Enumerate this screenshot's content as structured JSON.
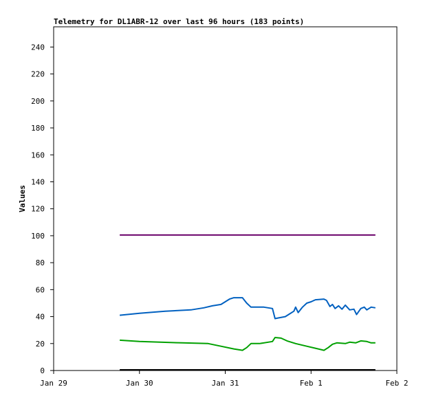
{
  "chart_data": {
    "type": "line",
    "title": "Telemetry for DL1ABR-12 over last 96 hours (183 points)",
    "xlabel": "",
    "ylabel": "Values",
    "ylim": [
      0,
      255
    ],
    "yticks": [
      0,
      20,
      40,
      60,
      80,
      100,
      120,
      140,
      160,
      180,
      200,
      220,
      240
    ],
    "xlim": [
      0,
      4
    ],
    "xticks": [
      {
        "value": 0,
        "label": "Jan 29"
      },
      {
        "value": 1,
        "label": "Jan 30"
      },
      {
        "value": 2,
        "label": "Jan 31"
      },
      {
        "value": 3,
        "label": "Feb 1"
      },
      {
        "value": 4,
        "label": "Feb 2"
      }
    ],
    "grid": false,
    "legend": "none",
    "series": [
      {
        "color": "#6a006a",
        "points": [
          [
            0.77,
            100.5
          ],
          [
            3.75,
            100.5
          ]
        ]
      },
      {
        "color": "#0060c0",
        "points": [
          [
            0.77,
            41
          ],
          [
            1.0,
            42.5
          ],
          [
            1.3,
            44
          ],
          [
            1.6,
            45
          ],
          [
            1.75,
            46.5
          ],
          [
            1.85,
            48
          ],
          [
            1.95,
            49
          ],
          [
            2.0,
            51
          ],
          [
            2.05,
            53
          ],
          [
            2.1,
            54
          ],
          [
            2.2,
            54
          ],
          [
            2.25,
            50
          ],
          [
            2.3,
            47
          ],
          [
            2.45,
            47
          ],
          [
            2.55,
            46
          ],
          [
            2.58,
            38.5
          ],
          [
            2.62,
            39
          ],
          [
            2.7,
            40
          ],
          [
            2.75,
            42
          ],
          [
            2.8,
            44
          ],
          [
            2.82,
            47
          ],
          [
            2.85,
            43
          ],
          [
            2.9,
            47
          ],
          [
            2.95,
            50
          ],
          [
            3.0,
            51
          ],
          [
            3.05,
            52.5
          ],
          [
            3.15,
            53
          ],
          [
            3.18,
            52
          ],
          [
            3.22,
            47.5
          ],
          [
            3.25,
            49
          ],
          [
            3.28,
            46
          ],
          [
            3.32,
            48
          ],
          [
            3.36,
            45.5
          ],
          [
            3.4,
            48.5
          ],
          [
            3.45,
            45
          ],
          [
            3.5,
            45.5
          ],
          [
            3.53,
            41.5
          ],
          [
            3.58,
            46
          ],
          [
            3.62,
            47
          ],
          [
            3.65,
            45
          ],
          [
            3.7,
            47
          ],
          [
            3.75,
            46.5
          ]
        ]
      },
      {
        "color": "#00a000",
        "points": [
          [
            0.77,
            22.5
          ],
          [
            1.0,
            21.5
          ],
          [
            1.5,
            20.5
          ],
          [
            1.8,
            20
          ],
          [
            1.95,
            18
          ],
          [
            2.1,
            16
          ],
          [
            2.2,
            15
          ],
          [
            2.25,
            17
          ],
          [
            2.3,
            20
          ],
          [
            2.4,
            20
          ],
          [
            2.55,
            21.5
          ],
          [
            2.58,
            24.5
          ],
          [
            2.65,
            24
          ],
          [
            2.72,
            22
          ],
          [
            2.82,
            20
          ],
          [
            2.95,
            18
          ],
          [
            3.05,
            16.5
          ],
          [
            3.15,
            15
          ],
          [
            3.2,
            17
          ],
          [
            3.25,
            19.5
          ],
          [
            3.3,
            20.5
          ],
          [
            3.4,
            20
          ],
          [
            3.45,
            21
          ],
          [
            3.52,
            20.5
          ],
          [
            3.58,
            22
          ],
          [
            3.65,
            21.5
          ],
          [
            3.7,
            20.5
          ],
          [
            3.75,
            20.5
          ]
        ]
      },
      {
        "color": "#000000",
        "points": [
          [
            0.77,
            0.5
          ],
          [
            3.75,
            0.5
          ]
        ]
      }
    ]
  }
}
